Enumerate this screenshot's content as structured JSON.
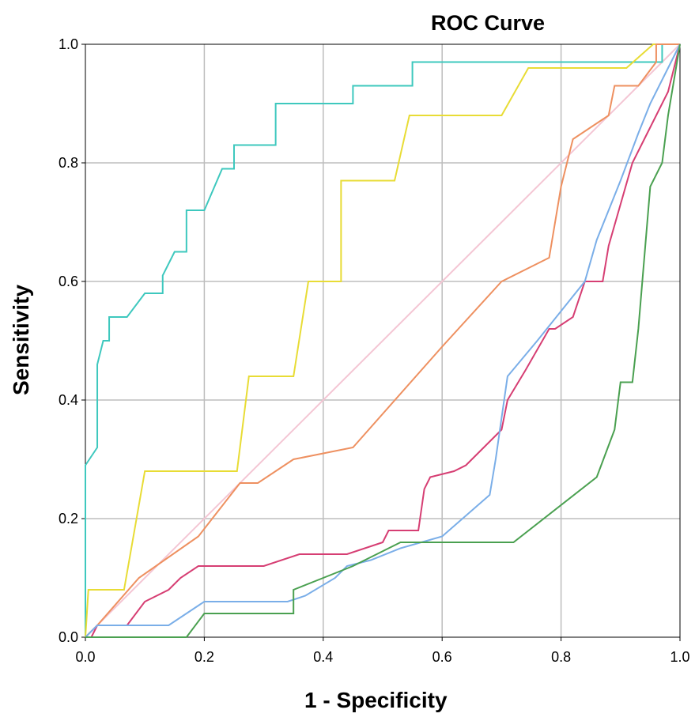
{
  "chart_data": {
    "type": "line",
    "title": "ROC Curve",
    "xlabel": "1 - Specificity",
    "ylabel": "Sensitivity",
    "xlim": [
      0,
      1
    ],
    "ylim": [
      0,
      1
    ],
    "grid": true,
    "x_ticks": [
      "0.0",
      "0.2",
      "0.4",
      "0.6",
      "0.8",
      "1.0"
    ],
    "y_ticks": [
      "0.0",
      "0.2",
      "0.4",
      "0.6",
      "0.8",
      "1.0"
    ],
    "series": [
      {
        "color": "#f4c6d4",
        "x": [
          0,
          1
        ],
        "y": [
          0,
          1
        ]
      },
      {
        "color": "#3ec8be",
        "x": [
          0,
          0,
          0.02,
          0.02,
          0.03,
          0.04,
          0.04,
          0.07,
          0.1,
          0.13,
          0.13,
          0.15,
          0.17,
          0.17,
          0.2,
          0.23,
          0.25,
          0.25,
          0.32,
          0.32,
          0.45,
          0.45,
          0.55,
          0.55,
          0.97,
          0.97,
          1.0
        ],
        "y": [
          0,
          0.29,
          0.32,
          0.46,
          0.5,
          0.5,
          0.54,
          0.54,
          0.58,
          0.58,
          0.61,
          0.65,
          0.65,
          0.72,
          0.72,
          0.79,
          0.79,
          0.83,
          0.83,
          0.9,
          0.9,
          0.93,
          0.93,
          0.97,
          0.97,
          1.0,
          1.0
        ]
      },
      {
        "color": "#e8dc35",
        "x": [
          0,
          0.005,
          0.065,
          0.1,
          0.255,
          0.275,
          0.35,
          0.375,
          0.43,
          0.43,
          0.52,
          0.545,
          0.7,
          0.745,
          0.91,
          0.955,
          1.0
        ],
        "y": [
          0,
          0.08,
          0.08,
          0.28,
          0.28,
          0.44,
          0.44,
          0.6,
          0.6,
          0.77,
          0.77,
          0.88,
          0.88,
          0.96,
          0.96,
          1.0,
          1.0
        ]
      },
      {
        "color": "#ee9060",
        "x": [
          0,
          0.02,
          0.09,
          0.19,
          0.26,
          0.29,
          0.35,
          0.45,
          0.6,
          0.7,
          0.78,
          0.8,
          0.82,
          0.88,
          0.89,
          0.93,
          0.96,
          0.96,
          0.98,
          1.0
        ],
        "y": [
          0,
          0.02,
          0.1,
          0.17,
          0.26,
          0.26,
          0.3,
          0.32,
          0.49,
          0.6,
          0.64,
          0.76,
          0.84,
          0.88,
          0.93,
          0.93,
          0.97,
          1.0,
          1.0,
          1.0
        ]
      },
      {
        "color": "#d63e73",
        "x": [
          0,
          0.01,
          0.02,
          0.07,
          0.1,
          0.14,
          0.16,
          0.19,
          0.24,
          0.3,
          0.36,
          0.44,
          0.5,
          0.51,
          0.56,
          0.57,
          0.58,
          0.62,
          0.64,
          0.66,
          0.7,
          0.71,
          0.74,
          0.78,
          0.79,
          0.82,
          0.84,
          0.85,
          0.87,
          0.88,
          0.9,
          0.92,
          0.95,
          0.98,
          1.0
        ],
        "y": [
          0,
          0,
          0.02,
          0.02,
          0.06,
          0.08,
          0.1,
          0.12,
          0.12,
          0.12,
          0.14,
          0.14,
          0.16,
          0.18,
          0.18,
          0.25,
          0.27,
          0.28,
          0.29,
          0.31,
          0.35,
          0.4,
          0.45,
          0.52,
          0.52,
          0.54,
          0.6,
          0.6,
          0.6,
          0.66,
          0.73,
          0.8,
          0.86,
          0.92,
          1.0
        ]
      },
      {
        "color": "#7aaee8",
        "x": [
          0,
          0.02,
          0.04,
          0.14,
          0.2,
          0.22,
          0.34,
          0.37,
          0.42,
          0.44,
          0.48,
          0.53,
          0.6,
          0.68,
          0.69,
          0.71,
          0.76,
          0.8,
          0.84,
          0.86,
          0.88,
          0.9,
          0.93,
          0.95,
          0.98,
          1.0
        ],
        "y": [
          0,
          0.02,
          0.02,
          0.02,
          0.06,
          0.06,
          0.06,
          0.07,
          0.1,
          0.12,
          0.13,
          0.15,
          0.17,
          0.24,
          0.3,
          0.44,
          0.5,
          0.55,
          0.6,
          0.67,
          0.72,
          0.77,
          0.85,
          0.9,
          0.96,
          1.0
        ]
      },
      {
        "color": "#4aa050",
        "x": [
          0,
          0.17,
          0.2,
          0.35,
          0.35,
          0.4,
          0.45,
          0.53,
          0.6,
          0.72,
          0.86,
          0.89,
          0.9,
          0.92,
          0.93,
          0.95,
          0.97,
          0.98,
          1.0
        ],
        "y": [
          0,
          0,
          0.04,
          0.04,
          0.08,
          0.1,
          0.12,
          0.16,
          0.16,
          0.16,
          0.27,
          0.35,
          0.43,
          0.43,
          0.52,
          0.76,
          0.8,
          0.88,
          1.0
        ]
      }
    ]
  }
}
